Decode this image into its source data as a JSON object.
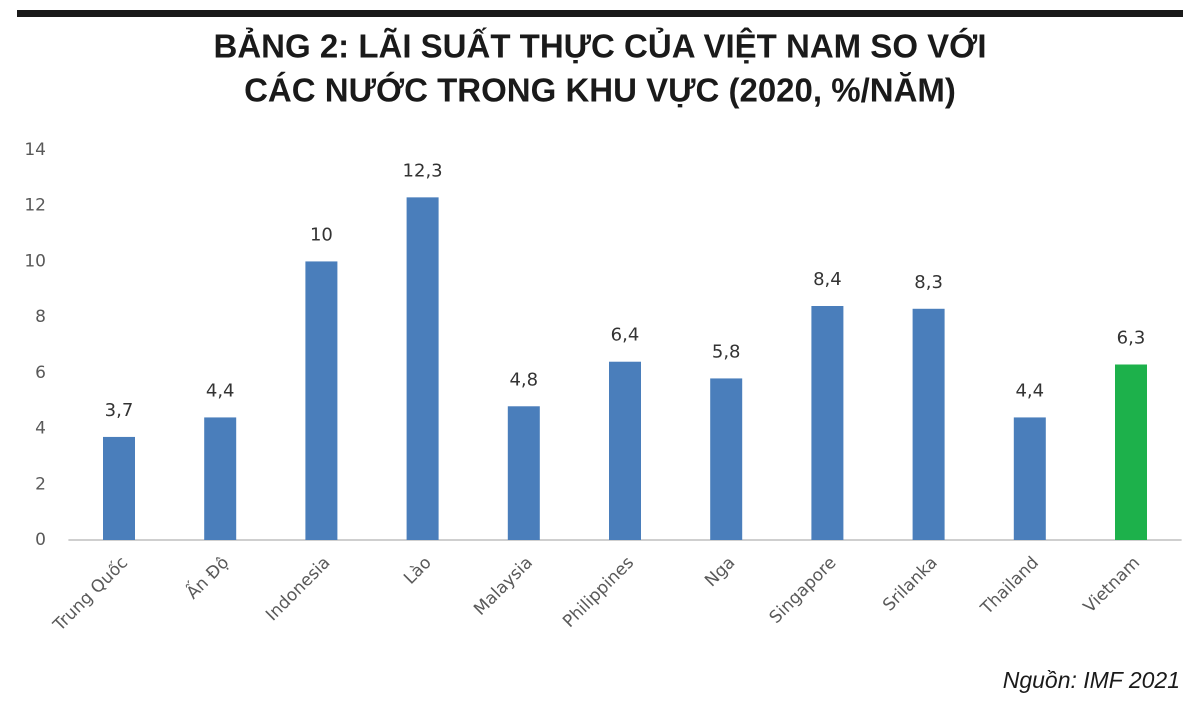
{
  "chart_data": {
    "type": "bar",
    "title": [
      "BẢNG 2: LÃI SUẤT THỰC CỦA VIỆT NAM SO VỚI",
      "CÁC NƯỚC TRONG KHU VỰC (2020, %/NĂM)"
    ],
    "categories": [
      "Trung Quốc",
      "Ấn Độ",
      "Indonesia",
      "Lào",
      "Malaysia",
      "Philippines",
      "Nga",
      "Singapore",
      "Srilanka",
      "Thailand",
      "Vietnam"
    ],
    "values": [
      3.7,
      4.4,
      10,
      12.3,
      4.8,
      6.4,
      5.8,
      8.4,
      8.3,
      4.4,
      6.3
    ],
    "value_labels": [
      "3,7",
      "4,4",
      "10",
      "12,3",
      "4,8",
      "6,4",
      "5,8",
      "8,4",
      "8,3",
      "4,4",
      "6,3"
    ],
    "colors": [
      "#4a7ebb",
      "#4a7ebb",
      "#4a7ebb",
      "#4a7ebb",
      "#4a7ebb",
      "#4a7ebb",
      "#4a7ebb",
      "#4a7ebb",
      "#4a7ebb",
      "#4a7ebb",
      "#1db14b"
    ],
    "ylim": [
      0,
      14
    ],
    "yticks": [
      0,
      2,
      4,
      6,
      8,
      10,
      12,
      14
    ],
    "grid": false,
    "source": "Nguồn: IMF 2021"
  }
}
